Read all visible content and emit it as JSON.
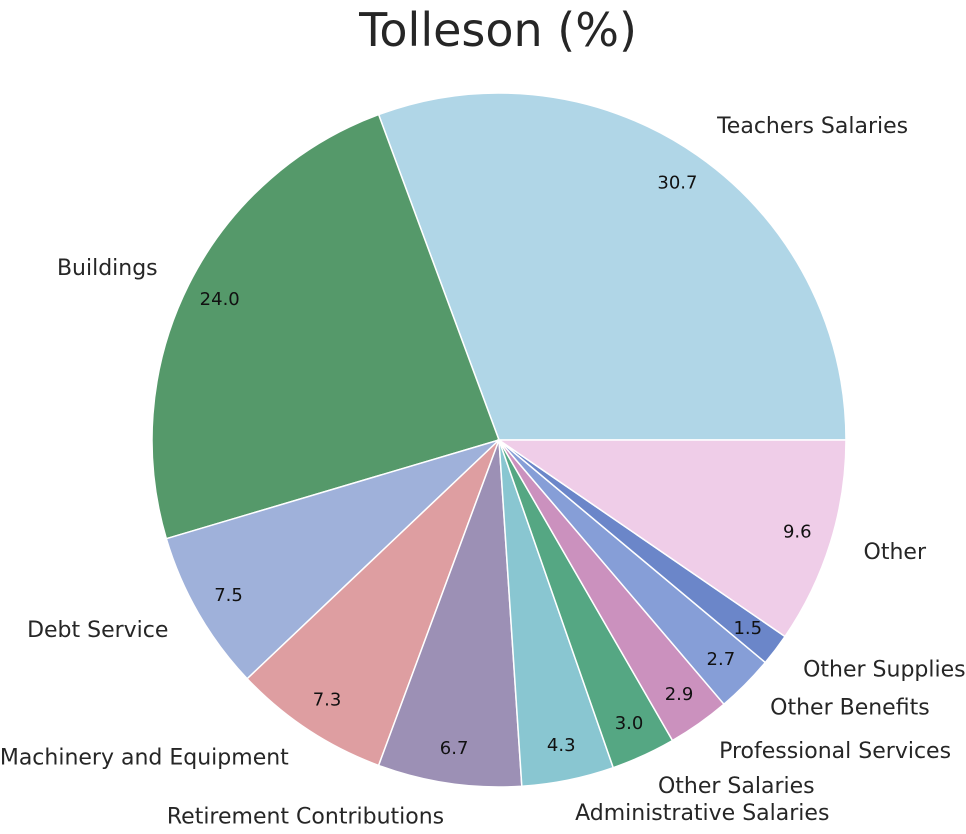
{
  "chart_data": {
    "type": "pie",
    "title": "Tolleson (%)",
    "categories": [
      "Teachers Salaries",
      "Buildings",
      "Debt Service",
      "Machinery and Equipment",
      "Retirement Contributions",
      "Administrative Salaries",
      "Other Salaries",
      "Professional Services",
      "Other Benefits",
      "Other Supplies",
      "Other"
    ],
    "values": [
      30.7,
      24.0,
      7.5,
      7.3,
      6.7,
      4.3,
      3.0,
      2.9,
      2.7,
      1.5,
      9.6
    ],
    "value_labels": [
      "30.7",
      "24.0",
      "7.5",
      "7.3",
      "6.7",
      "4.3",
      "3.0",
      "2.9",
      "2.7",
      "1.5",
      "9.6"
    ],
    "colors": [
      "#b0d6e7",
      "#55996a",
      "#9fb1da",
      "#de9ea1",
      "#9c90b5",
      "#89c6d1",
      "#55a783",
      "#cb91be",
      "#869ed7",
      "#6b86c9",
      "#efcde8"
    ],
    "start_angle_deg": 0,
    "direction": "counterclockwise",
    "legend": "none"
  }
}
